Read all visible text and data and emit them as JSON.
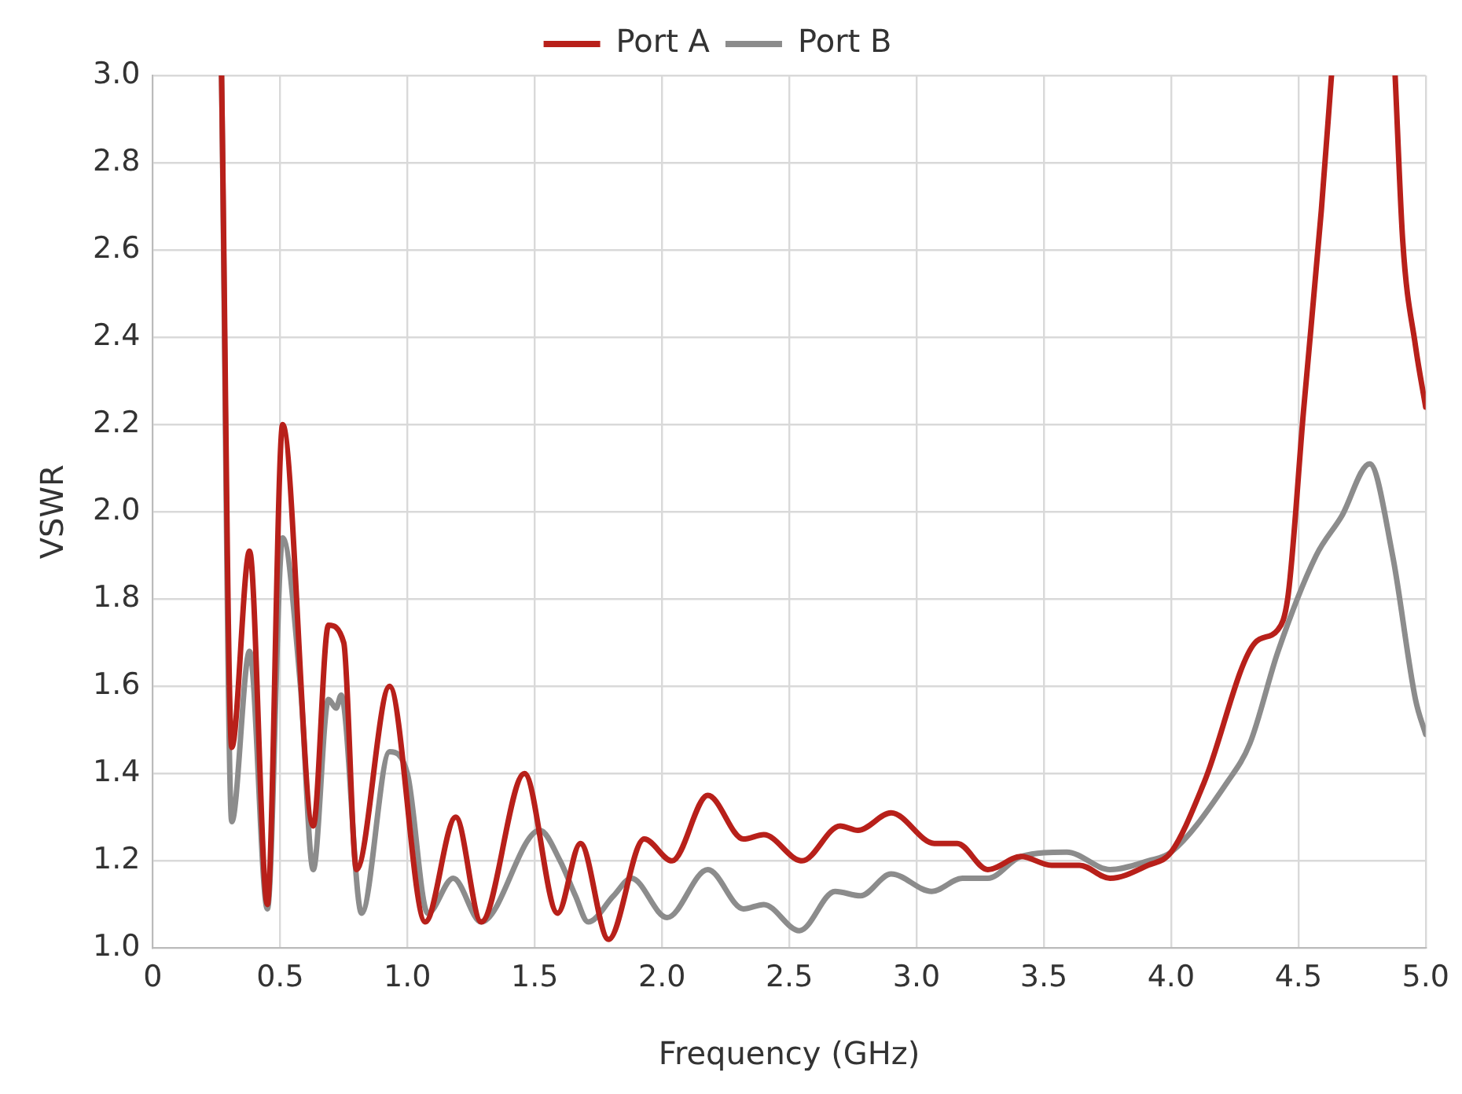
{
  "chart_data": {
    "type": "line",
    "xlabel": "Frequency (GHz)",
    "ylabel": "VSWR",
    "xlim": [
      0,
      5
    ],
    "ylim": [
      1,
      3
    ],
    "xticks": [
      0,
      0.5,
      {
        "value": 1,
        "label": "1.0"
      },
      1.5,
      {
        "value": 2,
        "label": "2.0"
      },
      2.5,
      {
        "value": 3,
        "label": "3.0"
      },
      3.5,
      {
        "value": 4,
        "label": "4.0"
      },
      4.5,
      {
        "value": 5,
        "label": "5.0"
      }
    ],
    "yticks": [
      {
        "value": 1,
        "label": "1.0"
      },
      1.2,
      1.4,
      1.6,
      1.8,
      {
        "value": 2,
        "label": "2.0"
      },
      2.2,
      2.4,
      2.6,
      2.8,
      {
        "value": 3,
        "label": "3.0"
      }
    ],
    "grid": true,
    "legend": "top",
    "marker": "none",
    "line_style": "solid",
    "series": [
      {
        "name": "Port A",
        "color": "#b8201a",
        "x": [
          0.27,
          0.31,
          0.38,
          0.45,
          0.51,
          0.63,
          0.69,
          0.75,
          0.8,
          0.93,
          1.07,
          1.19,
          1.29,
          1.46,
          1.59,
          1.68,
          1.79,
          1.93,
          2.04,
          2.18,
          2.32,
          2.4,
          2.55,
          2.7,
          2.77,
          2.9,
          3.07,
          3.16,
          3.28,
          3.41,
          3.53,
          3.64,
          3.76,
          3.91,
          4.0,
          4.13,
          4.33,
          4.42,
          4.46,
          4.52,
          4.59,
          4.63,
          4.75,
          4.88,
          4.91,
          4.96,
          5.0
        ],
        "values": [
          3.0,
          1.46,
          1.91,
          1.1,
          2.2,
          1.28,
          1.74,
          1.7,
          1.18,
          1.6,
          1.06,
          1.3,
          1.06,
          1.4,
          1.08,
          1.24,
          1.02,
          1.25,
          1.2,
          1.35,
          1.25,
          1.26,
          1.2,
          1.28,
          1.27,
          1.31,
          1.24,
          1.24,
          1.18,
          1.21,
          1.19,
          1.19,
          1.16,
          1.19,
          1.22,
          1.38,
          1.7,
          1.73,
          1.81,
          2.23,
          2.69,
          3.0,
          null,
          3.0,
          2.62,
          2.38,
          2.24
        ]
      },
      {
        "name": "Port B",
        "color": "#8c8c8c",
        "x": [
          0.27,
          0.31,
          0.38,
          0.45,
          0.51,
          0.58,
          0.63,
          0.69,
          0.72,
          0.74,
          0.82,
          0.93,
          1.0,
          1.08,
          1.18,
          1.29,
          1.52,
          1.6,
          1.66,
          1.71,
          1.81,
          1.88,
          2.02,
          2.18,
          2.32,
          2.4,
          2.54,
          2.68,
          2.78,
          2.9,
          3.06,
          3.18,
          3.28,
          3.41,
          3.59,
          3.76,
          3.91,
          4.0,
          4.22,
          4.31,
          4.42,
          4.57,
          4.67,
          4.78,
          4.87,
          4.96,
          5.0
        ],
        "values": [
          3.0,
          1.29,
          1.68,
          1.09,
          1.94,
          1.6,
          1.18,
          1.57,
          1.55,
          1.58,
          1.08,
          1.45,
          1.4,
          1.08,
          1.16,
          1.06,
          1.27,
          1.2,
          1.12,
          1.06,
          1.12,
          1.16,
          1.07,
          1.18,
          1.09,
          1.1,
          1.04,
          1.13,
          1.12,
          1.17,
          1.13,
          1.16,
          1.16,
          1.21,
          1.22,
          1.18,
          1.2,
          1.22,
          1.38,
          1.47,
          1.68,
          1.9,
          1.99,
          2.11,
          1.9,
          1.57,
          1.49
        ]
      }
    ]
  }
}
